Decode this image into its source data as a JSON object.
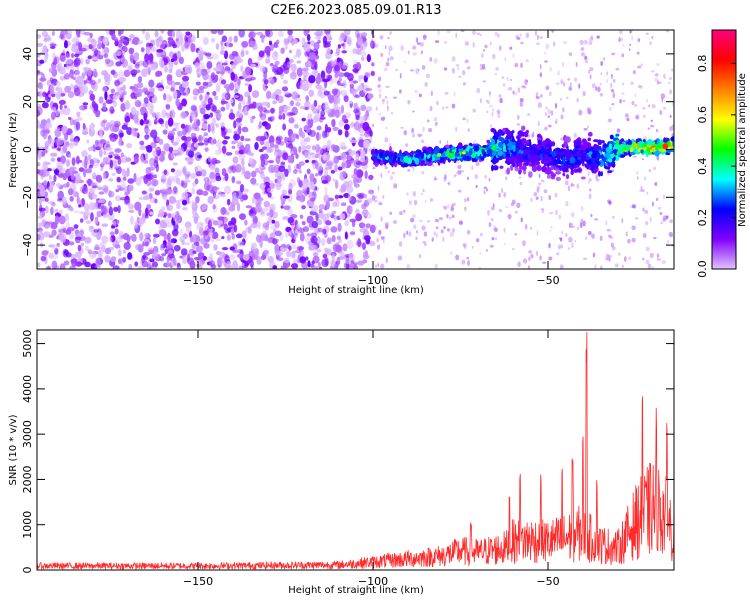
{
  "title": "C2E6.2023.085.09.01.R13",
  "chart_data": [
    {
      "type": "heatmap",
      "xlabel": "Height of straight line (km)",
      "ylabel": "Frequency (Hz)",
      "xlim": [
        -196,
        -14
      ],
      "ylim": [
        -50,
        50
      ],
      "x_ticks": [
        -150,
        -100,
        -50
      ],
      "y_ticks": [
        -40,
        -20,
        0,
        20,
        40
      ],
      "grid": false,
      "colorbar": {
        "label": "Normalized spectral amplitude",
        "range": [
          0.0,
          0.93
        ],
        "ticks": [
          0.0,
          0.2,
          0.4,
          0.6,
          0.8
        ],
        "colors": [
          "#e0c4ff",
          "#8000ff",
          "#0000ff",
          "#00ffff",
          "#00ff00",
          "#ffff00",
          "#ff8000",
          "#ff0000",
          "#ff0080"
        ]
      },
      "noise_region": {
        "x_range": [
          -196,
          -100
        ],
        "f_range": [
          -50,
          50
        ],
        "typical_amplitude": [
          0.0,
          0.15
        ]
      },
      "signal_band": {
        "x": [
          -100,
          -90,
          -80,
          -70,
          -62,
          -55,
          -50,
          -45,
          -40,
          -35,
          -30,
          -25,
          -20,
          -16,
          -14
        ],
        "frequency": [
          -3,
          -4,
          -2,
          -1,
          1,
          -1,
          -2,
          -4,
          -2,
          -3,
          0,
          1,
          1,
          1,
          2
        ],
        "peak_amplitude": [
          0.35,
          0.45,
          0.55,
          0.6,
          0.4,
          0.3,
          0.3,
          0.35,
          0.3,
          0.4,
          0.6,
          0.75,
          0.85,
          0.9,
          0.7
        ]
      }
    },
    {
      "type": "line",
      "xlabel": "Height of straight line (km)",
      "ylabel": "SNR (10 * v/v)",
      "xlim": [
        -196,
        -14
      ],
      "ylim": [
        0,
        5300
      ],
      "x_ticks": [
        -150,
        -100,
        -50
      ],
      "y_ticks": [
        0,
        1000,
        2000,
        3000,
        4000,
        5000
      ],
      "grid": false,
      "series": [
        {
          "color": "#ff2a2a",
          "x": [
            -196,
            -150,
            -110,
            -100,
            -90,
            -80,
            -75,
            -70,
            -62,
            -60,
            -55,
            -50,
            -45,
            -42,
            -40,
            -38,
            -35,
            -30,
            -25,
            -20,
            -17,
            -14
          ],
          "baseline": [
            130,
            130,
            160,
            250,
            350,
            450,
            600,
            550,
            700,
            900,
            950,
            900,
            1000,
            1100,
            1200,
            1000,
            800,
            700,
            1500,
            2000,
            1800,
            1200
          ],
          "peaks": [
            {
              "x": -72,
              "y": 1050
            },
            {
              "x": -61,
              "y": 1700
            },
            {
              "x": -58,
              "y": 2300
            },
            {
              "x": -52,
              "y": 2100
            },
            {
              "x": -46,
              "y": 2300
            },
            {
              "x": -43,
              "y": 2500
            },
            {
              "x": -40,
              "y": 3000
            },
            {
              "x": -39,
              "y": 5300
            },
            {
              "x": -36,
              "y": 2000
            },
            {
              "x": -23,
              "y": 4100
            },
            {
              "x": -19,
              "y": 3600
            },
            {
              "x": -16,
              "y": 3500
            }
          ]
        }
      ]
    }
  ]
}
